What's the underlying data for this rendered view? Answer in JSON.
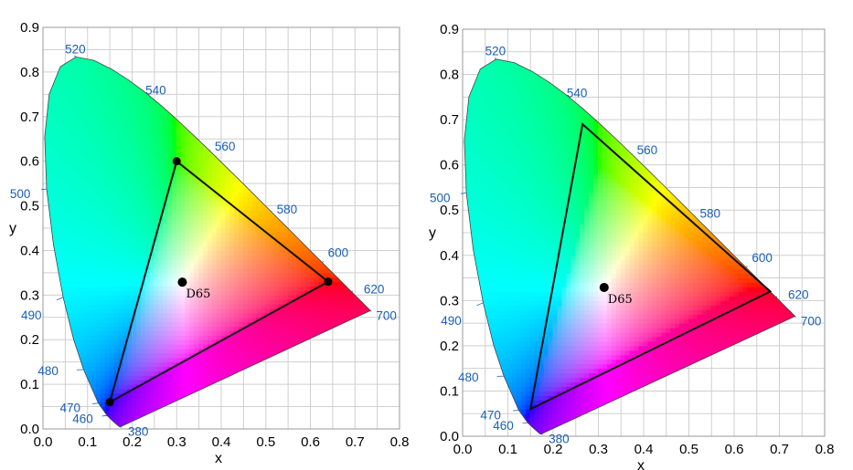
{
  "chart_data": [
    {
      "type": "scatter",
      "title": "",
      "xlabel": "x",
      "ylabel": "y",
      "xlim": [
        0.0,
        0.8
      ],
      "ylim": [
        0.0,
        0.9
      ],
      "x_ticks": [
        "0.0",
        "0.1",
        "0.2",
        "0.3",
        "0.4",
        "0.5",
        "0.6",
        "0.7",
        "0.8"
      ],
      "y_ticks": [
        "0.0",
        "0.1",
        "0.2",
        "0.3",
        "0.4",
        "0.5",
        "0.6",
        "0.7",
        "0.8",
        "0.9"
      ],
      "grid": true,
      "wavelength_labels": [
        {
          "label": "380",
          "x": 0.174,
          "y": 0.005
        },
        {
          "label": "460",
          "x": 0.144,
          "y": 0.03
        },
        {
          "label": "470",
          "x": 0.124,
          "y": 0.058
        },
        {
          "label": "480",
          "x": 0.091,
          "y": 0.133
        },
        {
          "label": "490",
          "x": 0.045,
          "y": 0.295
        },
        {
          "label": "500",
          "x": 0.008,
          "y": 0.538
        },
        {
          "label": "520",
          "x": 0.074,
          "y": 0.834
        },
        {
          "label": "540",
          "x": 0.23,
          "y": 0.754
        },
        {
          "label": "560",
          "x": 0.373,
          "y": 0.624
        },
        {
          "label": "580",
          "x": 0.512,
          "y": 0.487
        },
        {
          "label": "600",
          "x": 0.627,
          "y": 0.373
        },
        {
          "label": "620",
          "x": 0.691,
          "y": 0.308
        },
        {
          "label": "700",
          "x": 0.735,
          "y": 0.265
        }
      ],
      "gamut_triangle": [
        {
          "x": 0.3,
          "y": 0.6
        },
        {
          "x": 0.64,
          "y": 0.33
        },
        {
          "x": 0.15,
          "y": 0.06
        }
      ],
      "gamut_vertex_markers": true,
      "white_point": {
        "label": "D65",
        "x": 0.3127,
        "y": 0.329
      }
    },
    {
      "type": "scatter",
      "title": "",
      "xlabel": "x",
      "ylabel": "y",
      "xlim": [
        0.0,
        0.8
      ],
      "ylim": [
        0.0,
        0.9
      ],
      "x_ticks": [
        "0.0",
        "0.1",
        "0.2",
        "0.3",
        "0.4",
        "0.5",
        "0.6",
        "0.7",
        "0.8"
      ],
      "y_ticks": [
        "0.0",
        "0.1",
        "0.2",
        "0.3",
        "0.4",
        "0.5",
        "0.6",
        "0.7",
        "0.8",
        "0.9"
      ],
      "grid": true,
      "wavelength_labels": [
        {
          "label": "380",
          "x": 0.174,
          "y": 0.005
        },
        {
          "label": "460",
          "x": 0.144,
          "y": 0.03
        },
        {
          "label": "470",
          "x": 0.124,
          "y": 0.058
        },
        {
          "label": "480",
          "x": 0.091,
          "y": 0.133
        },
        {
          "label": "490",
          "x": 0.045,
          "y": 0.295
        },
        {
          "label": "500",
          "x": 0.008,
          "y": 0.538
        },
        {
          "label": "520",
          "x": 0.074,
          "y": 0.834
        },
        {
          "label": "540",
          "x": 0.23,
          "y": 0.754
        },
        {
          "label": "560",
          "x": 0.373,
          "y": 0.624
        },
        {
          "label": "580",
          "x": 0.512,
          "y": 0.487
        },
        {
          "label": "600",
          "x": 0.627,
          "y": 0.373
        },
        {
          "label": "620",
          "x": 0.691,
          "y": 0.308
        },
        {
          "label": "700",
          "x": 0.735,
          "y": 0.265
        }
      ],
      "gamut_triangle": [
        {
          "x": 0.265,
          "y": 0.69
        },
        {
          "x": 0.68,
          "y": 0.32
        },
        {
          "x": 0.15,
          "y": 0.06
        }
      ],
      "gamut_vertex_markers": false,
      "white_point": {
        "label": "D65",
        "x": 0.3127,
        "y": 0.329
      }
    }
  ]
}
